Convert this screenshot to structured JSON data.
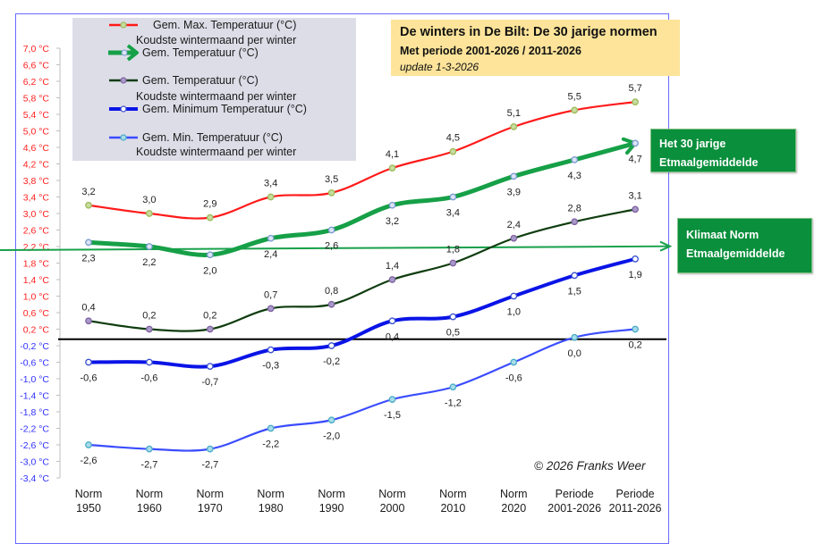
{
  "chart_data": {
    "type": "line",
    "title": "De winters in De Bilt:  De 30 jarige normen",
    "subtitle": "Met periode 2001-2026 / 2011-2026",
    "update": "update  1-3-2026",
    "xlabel": "",
    "ylabel": "",
    "categories": [
      [
        "Norm",
        "1950"
      ],
      [
        "Norm",
        "1960"
      ],
      [
        "Norm",
        "1970"
      ],
      [
        "Norm",
        "1980"
      ],
      [
        "Norm",
        "1990"
      ],
      [
        "Norm",
        "2000"
      ],
      [
        "Norm",
        "2010"
      ],
      [
        "Norm",
        "2020"
      ],
      [
        "Periode",
        "2001-2026"
      ],
      [
        "Periode",
        "2011-2026"
      ]
    ],
    "ylim": [
      -3.4,
      7.0
    ],
    "yticks": [
      7.0,
      6.6,
      6.2,
      5.8,
      5.4,
      5.0,
      4.6,
      4.2,
      3.8,
      3.4,
      3.0,
      2.6,
      2.2,
      1.8,
      1.4,
      1.0,
      0.6,
      0.2,
      -0.2,
      -0.6,
      -1.0,
      -1.4,
      -1.8,
      -2.2,
      -2.6,
      -3.0,
      -3.4
    ],
    "ytick_labels": [
      "7,0 °C",
      "6,6 °C",
      "6,2 °C",
      "5,8 °C",
      "5,4 °C",
      "5,0 °C",
      "4,6 °C",
      "4,2 °C",
      "3,8 °C",
      "3,4 °C",
      "3,0 °C",
      "2,6 °C",
      "2,2 °C",
      "1,8 °C",
      "1,4 °C",
      "1,0 °C",
      "0,6 °C",
      "0,2 °C",
      "-0,2 °C",
      "-0,6 °C",
      "-1,0 °C",
      "-1,4 °C",
      "-1,8 °C",
      "-2,2 °C",
      "-2,6 °C",
      "-3,0 °C",
      "-3,4 °C"
    ],
    "ytick_colors": {
      "positive": "#ff2020",
      "negative": "#3030ff"
    },
    "grid": false,
    "reference_lines": [
      {
        "name": "zero-line",
        "value": 0.0,
        "color": "#000000"
      },
      {
        "name": "klimaat-norm-arrow",
        "value": 2.2,
        "value_end": 2.3,
        "color": "#17a04a"
      }
    ],
    "series": [
      {
        "name": "Gem. Max. Temperatuur (°C)",
        "legend_sub": "Koudste wintermaand per winter",
        "color": "#ff1a1a",
        "marker_fill": "#c8dca0",
        "marker_stroke": "#9bbb59",
        "width": 2.2,
        "values": [
          3.2,
          3.0,
          2.9,
          3.4,
          3.5,
          4.1,
          4.5,
          5.1,
          5.5,
          5.7
        ],
        "labels": [
          "3,2",
          "3,0",
          "2,9",
          "3,4",
          "3,5",
          "4,1",
          "4,5",
          "5,1",
          "5,5",
          "5,7"
        ],
        "label_pos": "above"
      },
      {
        "name": "Gem. Temperatuur (°C)",
        "legend_sub": "",
        "color": "#16a047",
        "marker_fill": "#dbe4f5",
        "marker_stroke": "#7b9bd0",
        "width": 5,
        "values": [
          2.3,
          2.2,
          2.0,
          2.4,
          2.6,
          3.2,
          3.4,
          3.9,
          4.3,
          4.7
        ],
        "labels": [
          "2,3",
          "2,2",
          "2,0",
          "2,4",
          "2,6",
          "3,2",
          "3,4",
          "3,9",
          "4,3",
          "4,7"
        ],
        "label_pos": "below",
        "end_arrow": true
      },
      {
        "name": "Gem. Temperatuur (°C)",
        "legend_sub": "Koudste wintermaand per winter",
        "color": "#0f3d0f",
        "marker_fill": "#a899c8",
        "marker_stroke": "#8064a2",
        "width": 2.2,
        "values": [
          0.4,
          0.2,
          0.2,
          0.7,
          0.8,
          1.4,
          1.8,
          2.4,
          2.8,
          3.1
        ],
        "labels": [
          "0,4",
          "0,2",
          "0,2",
          "0,7",
          "0,8",
          "1,4",
          "1,8",
          "2,4",
          "2,8",
          "3,1"
        ],
        "label_pos": "above"
      },
      {
        "name": "Gem. Minimum Temperatuur (°C)",
        "legend_sub": "",
        "color": "#0a14e6",
        "marker_fill": "#ffffff",
        "marker_stroke": "#3a50d0",
        "width": 4,
        "values": [
          -0.6,
          -0.6,
          -0.7,
          -0.3,
          -0.2,
          0.4,
          0.5,
          1.0,
          1.5,
          1.9
        ],
        "labels": [
          "-0,6",
          "-0,6",
          "-0,7",
          "-0,3",
          "-0,2",
          "0,4",
          "0,5",
          "1,0",
          "1,5",
          "1,9"
        ],
        "label_pos": "below"
      },
      {
        "name": "Gem. Min. Temperatuur (°C)",
        "legend_sub": "Koudste wintermaand per winter",
        "color": "#3b4cff",
        "marker_fill": "#a8dcea",
        "marker_stroke": "#4bacc6",
        "width": 2.2,
        "values": [
          -2.6,
          -2.7,
          -2.7,
          -2.2,
          -2.0,
          -1.5,
          -1.2,
          -0.6,
          0.0,
          0.2
        ],
        "labels": [
          "-2,6",
          "-2,7",
          "-2,7",
          "-2,2",
          "-2,0",
          "-1,5",
          "-1,2",
          "-0,6",
          "0,0",
          "0,2"
        ],
        "label_pos": "below"
      }
    ],
    "legend": [
      {
        "label": "Gem.  Max. Temperatuur  (°C)",
        "sub": "Koudste wintermaand per winter",
        "series": 0
      },
      {
        "label": "Gem.  Temperatuur  (°C)",
        "sub": "",
        "series": 1
      },
      {
        "label": "Gem.  Temperatuur  (°C)",
        "sub": "Koudste wintermaand per winter",
        "series": 2
      },
      {
        "label": "Gem.  Minimum Temperatuur  (°C)",
        "sub": "",
        "series": 3
      },
      {
        "label": "Gem.  Min. Temperatuur  (°C)",
        "sub": "Koudste wintermaand per winter",
        "series": 4
      }
    ],
    "legend_position": "top-left",
    "annotations": [
      {
        "name": "callout-30-jarige",
        "lines": [
          "Het 30 jarige",
          "Etmaalgemiddelde"
        ]
      },
      {
        "name": "callout-klimaat-norm",
        "lines": [
          "Klimaat Norm",
          "Etmaalgemiddelde"
        ]
      },
      {
        "name": "copyright",
        "text": "© 2026 Franks Weer"
      }
    ]
  },
  "title_box": {
    "main": "De winters in De Bilt:  De 30 jarige normen",
    "sub": "Met periode 2001-2026 / 2011-2026",
    "update": "update  1-3-2026"
  },
  "callouts": {
    "thirty_year": [
      "Het 30 jarige",
      "Etmaalgemiddelde"
    ],
    "klimaat": [
      "Klimaat Norm",
      "Etmaalgemiddelde"
    ]
  },
  "copyright": "© 2026 Franks Weer",
  "colors": {
    "frame": "#6a6aff",
    "legend_bg": "#dddde8",
    "title_bg": "#fde49a",
    "callout_bg": "#0a8f3c"
  }
}
